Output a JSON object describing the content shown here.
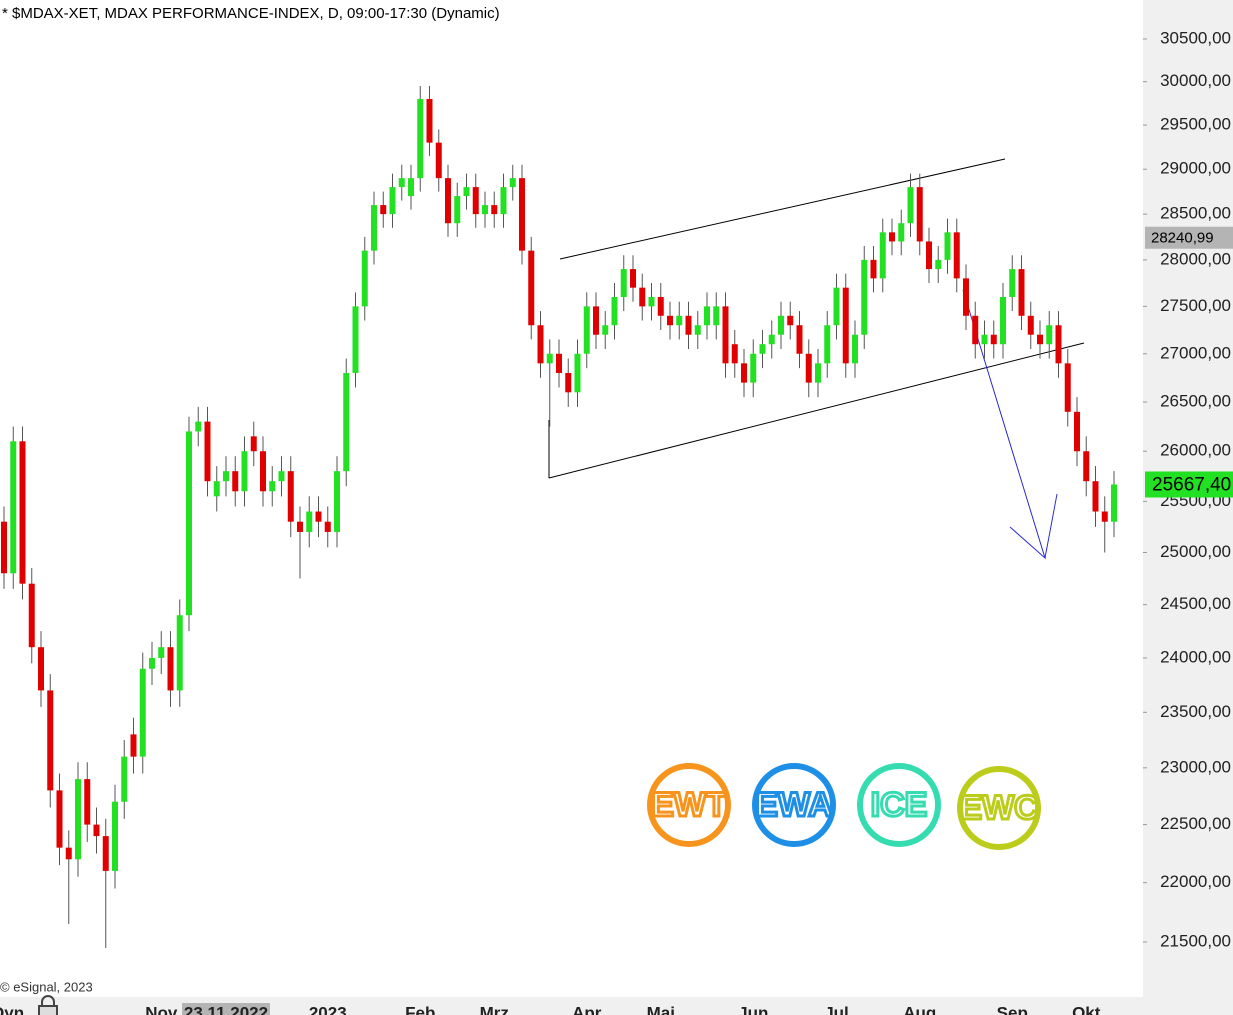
{
  "chart_data": {
    "type": "candlestick",
    "title": "* $MDAX-XET, MDAX PERFORMANCE-INDEX, D, 09:00-17:30 (Dynamic)",
    "copyright": "© eSignal, 2023",
    "x_axis_corner": "Dyn",
    "log_scale": true,
    "up_color": "#22e022",
    "down_color": "#e00000",
    "ylim": [
      21047,
      30964
    ],
    "yticks": [
      {
        "value": 21500,
        "label": "21500,00"
      },
      {
        "value": 22000,
        "label": "22000,00"
      },
      {
        "value": 22500,
        "label": "22500,00"
      },
      {
        "value": 23000,
        "label": "23000,00"
      },
      {
        "value": 23500,
        "label": "23500,00"
      },
      {
        "value": 24000,
        "label": "24000,00"
      },
      {
        "value": 24500,
        "label": "24500,00"
      },
      {
        "value": 25000,
        "label": "25000,00"
      },
      {
        "value": 25500,
        "label": "25500,00"
      },
      {
        "value": 26000,
        "label": "26000,00"
      },
      {
        "value": 26500,
        "label": "26500,00"
      },
      {
        "value": 27000,
        "label": "27000,00"
      },
      {
        "value": 27500,
        "label": "27500,00"
      },
      {
        "value": 28000,
        "label": "28000,00"
      },
      {
        "value": 28500,
        "label": "28500,00"
      },
      {
        "value": 29000,
        "label": "29000,00"
      },
      {
        "value": 29500,
        "label": "29500,00"
      },
      {
        "value": 30000,
        "label": "30000,00"
      },
      {
        "value": 30500,
        "label": "30500,00"
      }
    ],
    "markers": [
      {
        "value": 28240.99,
        "label": "28240,99",
        "color": "#b4b4b4"
      },
      {
        "value": 25667.4,
        "label": "25667,40",
        "color": "#22e022"
      }
    ],
    "logos": [
      {
        "label": "EWT",
        "color": "#f7941d"
      },
      {
        "label": "EWA",
        "color": "#1e8fe6"
      },
      {
        "label": "ICE",
        "color": "#35dcb0"
      },
      {
        "label": "EWC",
        "color": "#bccc1a"
      }
    ],
    "categories": [
      null,
      null,
      null,
      null,
      null,
      null,
      null,
      null,
      null,
      null,
      null,
      null,
      null,
      null,
      null,
      null,
      null,
      "Nov",
      null,
      null,
      null,
      null,
      null,
      null,
      "23.11.2022",
      null,
      null,
      null,
      null,
      null,
      null,
      null,
      null,
      null,
      null,
      "2023",
      null,
      null,
      null,
      null,
      null,
      null,
      null,
      null,
      null,
      "Feb",
      null,
      null,
      null,
      null,
      null,
      null,
      null,
      "Mrz",
      null,
      null,
      null,
      null,
      null,
      null,
      null,
      null,
      null,
      "Apr",
      null,
      null,
      null,
      null,
      null,
      null,
      null,
      "Mai",
      null,
      null,
      null,
      null,
      null,
      null,
      null,
      null,
      null,
      "Jun",
      null,
      null,
      null,
      null,
      null,
      null,
      null,
      null,
      "Jul",
      null,
      null,
      null,
      null,
      null,
      null,
      null,
      null,
      "Aug",
      null,
      null,
      null,
      null,
      null,
      null,
      null,
      null,
      null,
      "Sep",
      null,
      null,
      null,
      null,
      null,
      null,
      null,
      "Okt",
      null,
      null,
      null
    ],
    "open": [
      25300,
      24800,
      26100,
      24700,
      24100,
      23700,
      22800,
      22300,
      22200,
      22900,
      22500,
      22400,
      22100,
      22700,
      23300,
      23100,
      23900,
      24000,
      24100,
      23700,
      24400,
      26200,
      26300,
      25550,
      25700,
      25800,
      25600,
      26150,
      26000,
      25600,
      25700,
      25800,
      25300,
      25200,
      25400,
      25300,
      25200,
      25800,
      26800,
      27500,
      28100,
      28600,
      28500,
      28800,
      28700,
      28900,
      29800,
      29300,
      28900,
      28400,
      28700,
      28800,
      28500,
      28600,
      28500,
      28800,
      28900,
      28100,
      27300,
      26900,
      27000,
      26800,
      26600,
      27000,
      27500,
      27200,
      27300,
      27600,
      27900,
      27700,
      27500,
      27600,
      27400,
      27300,
      27400,
      27200,
      27300,
      27300,
      27500,
      27100,
      26900,
      26700,
      27000,
      27100,
      27200,
      27400,
      27300,
      27000,
      26700,
      26900,
      27300,
      27700,
      26900,
      27200,
      28000,
      27800,
      28300,
      28200,
      28400,
      28800,
      28200,
      27900,
      28000,
      28300,
      27800,
      27400,
      27100,
      27200,
      27100,
      27600,
      27900,
      27400,
      27200,
      27100,
      27300,
      26900,
      26400,
      26000,
      25700,
      25400,
      25300
    ],
    "high": [
      25450,
      26250,
      26250,
      24850,
      24250,
      23850,
      22950,
      22450,
      23050,
      23050,
      22650,
      22550,
      22850,
      23250,
      23450,
      24050,
      24150,
      24250,
      24250,
      24550,
      26350,
      26450,
      26450,
      25850,
      25950,
      25950,
      26150,
      26300,
      26150,
      25850,
      25950,
      25950,
      25450,
      25550,
      25550,
      25450,
      25950,
      26950,
      27650,
      28250,
      28750,
      28750,
      28950,
      29050,
      29050,
      29950,
      29950,
      29450,
      29050,
      28850,
      28950,
      28950,
      28750,
      28750,
      28950,
      29050,
      29050,
      28250,
      27450,
      27150,
      27150,
      26950,
      27150,
      27650,
      27650,
      27450,
      27750,
      28050,
      28050,
      27850,
      27750,
      27750,
      27550,
      27550,
      27550,
      27450,
      27650,
      27650,
      27650,
      27250,
      27050,
      27150,
      27250,
      27350,
      27550,
      27550,
      27450,
      27150,
      27050,
      27450,
      27850,
      27850,
      27350,
      28150,
      28150,
      28450,
      28450,
      28550,
      28950,
      28950,
      28350,
      28150,
      28450,
      28450,
      27950,
      27550,
      27350,
      27350,
      27750,
      28050,
      28050,
      27550,
      27350,
      27450,
      27450,
      27050,
      26550,
      26150,
      25850,
      25550,
      25800
    ],
    "low": [
      24650,
      24650,
      24550,
      23950,
      23550,
      22650,
      22150,
      21650,
      22050,
      22350,
      22250,
      21450,
      21950,
      22550,
      22950,
      22950,
      23750,
      23850,
      23550,
      23550,
      24250,
      26050,
      25550,
      25400,
      25550,
      25450,
      25450,
      25850,
      25450,
      25450,
      25550,
      25150,
      24750,
      25050,
      25150,
      25050,
      25050,
      25650,
      26650,
      27350,
      27950,
      28350,
      28350,
      28650,
      28550,
      28750,
      29150,
      28750,
      28250,
      28250,
      28550,
      28350,
      28350,
      28350,
      28350,
      28650,
      27950,
      27150,
      26750,
      26250,
      26650,
      26450,
      26450,
      26850,
      27050,
      27050,
      27150,
      27450,
      27550,
      27350,
      27350,
      27250,
      27150,
      27150,
      27050,
      27050,
      27150,
      27150,
      26750,
      26750,
      26550,
      26550,
      26850,
      26950,
      27050,
      27150,
      26850,
      26550,
      26550,
      26750,
      27150,
      26750,
      26750,
      27050,
      27650,
      27650,
      28050,
      28050,
      28250,
      28050,
      27750,
      27750,
      27850,
      27650,
      27250,
      26950,
      26950,
      26950,
      26950,
      27450,
      27250,
      27050,
      26950,
      26950,
      26750,
      26250,
      25850,
      25550,
      25250,
      25000,
      25150
    ],
    "close": [
      24800,
      26100,
      24700,
      24100,
      23700,
      22800,
      22300,
      22200,
      22900,
      22500,
      22400,
      22100,
      22700,
      23100,
      23100,
      23900,
      24000,
      24100,
      23700,
      24400,
      26200,
      26300,
      25700,
      25700,
      25800,
      25600,
      26000,
      26000,
      25600,
      25700,
      25800,
      25300,
      25200,
      25400,
      25300,
      25200,
      25800,
      26800,
      27500,
      28100,
      28600,
      28500,
      28800,
      28900,
      28900,
      29800,
      29300,
      28900,
      28400,
      28700,
      28800,
      28500,
      28600,
      28500,
      28800,
      28900,
      28100,
      27300,
      26900,
      27000,
      26800,
      26600,
      27000,
      27500,
      27200,
      27300,
      27600,
      27900,
      27700,
      27500,
      27600,
      27400,
      27300,
      27400,
      27200,
      27300,
      27500,
      27500,
      26900,
      26900,
      26700,
      27000,
      27100,
      27200,
      27400,
      27300,
      27000,
      26700,
      26900,
      27300,
      27700,
      26900,
      27200,
      28000,
      27800,
      28300,
      28200,
      28400,
      28800,
      28200,
      27900,
      28000,
      28300,
      27800,
      27400,
      27100,
      27200,
      27100,
      27600,
      27900,
      27400,
      27200,
      27100,
      27300,
      26900,
      26400,
      26000,
      25700,
      25400,
      25300,
      25667.4
    ]
  }
}
